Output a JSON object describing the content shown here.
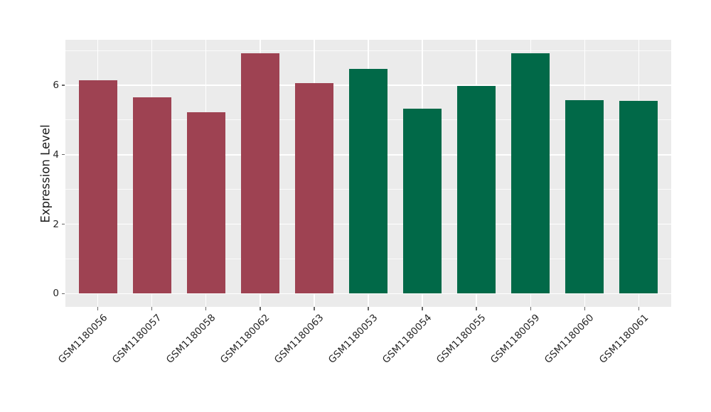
{
  "chart_data": {
    "type": "bar",
    "title": "",
    "xlabel": "",
    "ylabel": "Expression Level",
    "categories": [
      "GSM1180056",
      "GSM1180057",
      "GSM1180058",
      "GSM1180062",
      "GSM1180063",
      "GSM1180053",
      "GSM1180054",
      "GSM1180055",
      "GSM1180059",
      "GSM1180060",
      "GSM1180061"
    ],
    "values": [
      6.15,
      5.65,
      5.22,
      6.93,
      6.07,
      6.48,
      5.33,
      5.99,
      6.93,
      5.58,
      5.55
    ],
    "groups": [
      "maroon",
      "maroon",
      "maroon",
      "maroon",
      "maroon",
      "green",
      "green",
      "green",
      "green",
      "green",
      "green"
    ],
    "group_colors": {
      "maroon": "#9E4252",
      "green": "#016948"
    },
    "yticks": [
      0,
      2,
      4,
      6
    ],
    "minor_yticks": [
      1,
      3,
      5,
      7
    ],
    "ylim": [
      -0.38,
      7.31
    ],
    "grid": true,
    "legend": false,
    "panel_bg": "#EBEBEB",
    "grid_color": "#FFFFFF",
    "tick_color": "#666666",
    "text_color": "#262626",
    "x_label_rotation_deg": 45
  }
}
